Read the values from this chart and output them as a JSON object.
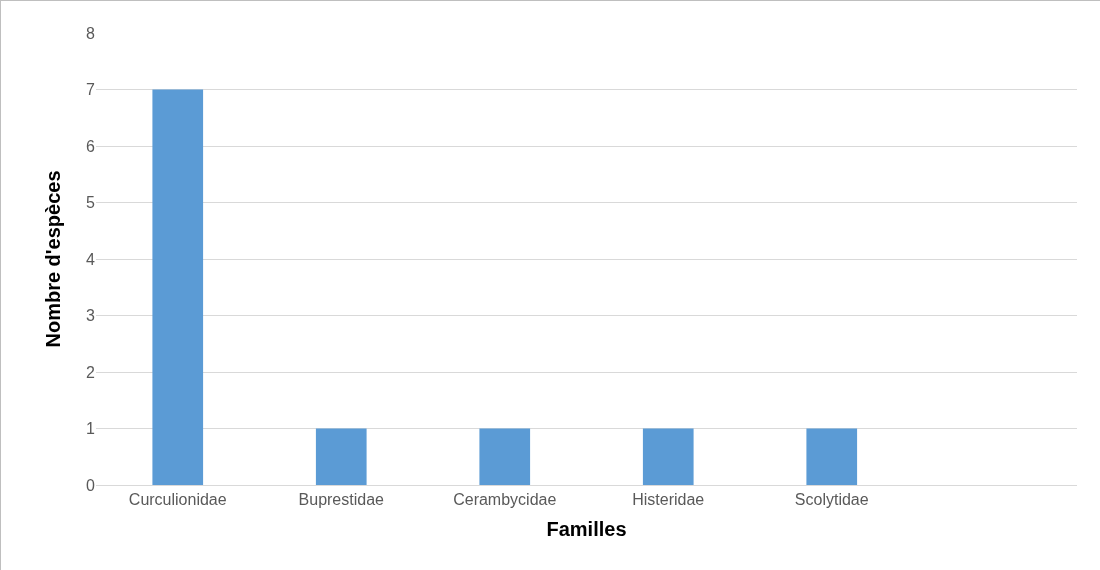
{
  "chart_data": {
    "type": "bar",
    "xlabel": "Familles",
    "ylabel": "Nombre d'espèces",
    "categories": [
      "Curculionidae",
      "Buprestidae",
      "Cerambycidae",
      "Histeridae",
      "Scolytidae",
      null
    ],
    "values": [
      7,
      1,
      1,
      1,
      1,
      null
    ],
    "color": "#5b9bd5",
    "ylim": [
      0,
      8
    ],
    "yticks": [
      0,
      1,
      2,
      3,
      4,
      5,
      6,
      7,
      8
    ],
    "grid": "y"
  }
}
